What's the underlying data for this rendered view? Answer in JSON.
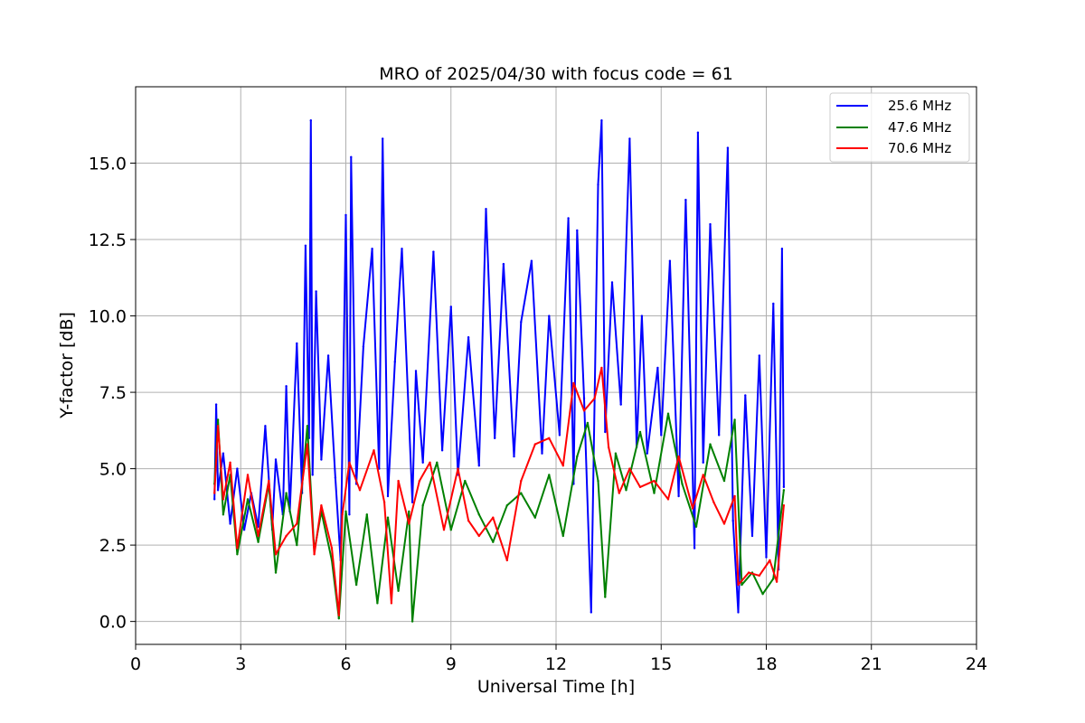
{
  "chart_data": {
    "type": "line",
    "title": "MRO of 2025/04/30 with focus code = 61",
    "xlabel": "Universal Time [h]",
    "ylabel": "Y-factor [dB]",
    "xlim": [
      0,
      24
    ],
    "ylim": [
      -0.75,
      17.5
    ],
    "xticks": [
      0,
      3,
      6,
      9,
      12,
      15,
      18,
      21,
      24
    ],
    "yticks": [
      0.0,
      2.5,
      5.0,
      7.5,
      10.0,
      12.5,
      15.0
    ],
    "ytick_labels": [
      "0.0",
      "2.5",
      "5.0",
      "7.5",
      "10.0",
      "12.5",
      "15.0"
    ],
    "grid": true,
    "legend_position": "top-right",
    "series": [
      {
        "name": "25.6 MHz",
        "color": "#0000ff",
        "x": [
          2.25,
          2.3,
          2.35,
          2.5,
          2.7,
          2.9,
          3.1,
          3.3,
          3.5,
          3.7,
          3.9,
          4.0,
          4.2,
          4.3,
          4.4,
          4.6,
          4.75,
          4.85,
          4.95,
          5.0,
          5.05,
          5.15,
          5.3,
          5.5,
          5.7,
          5.85,
          6.0,
          6.1,
          6.15,
          6.3,
          6.5,
          6.75,
          6.95,
          7.05,
          7.2,
          7.4,
          7.6,
          7.9,
          8.0,
          8.2,
          8.5,
          8.75,
          9.0,
          9.2,
          9.5,
          9.8,
          10.0,
          10.25,
          10.5,
          10.8,
          11.0,
          11.3,
          11.6,
          11.8,
          12.1,
          12.35,
          12.5,
          12.6,
          12.8,
          13.0,
          13.2,
          13.3,
          13.4,
          13.6,
          13.85,
          14.1,
          14.3,
          14.45,
          14.6,
          14.9,
          15.0,
          15.25,
          15.5,
          15.7,
          15.95,
          16.05,
          16.2,
          16.4,
          16.65,
          16.9,
          17.05,
          17.2,
          17.4,
          17.6,
          17.8,
          18.0,
          18.2,
          18.35,
          18.45,
          18.5
        ],
        "values": [
          4.0,
          7.1,
          4.3,
          5.5,
          3.2,
          5.0,
          3.0,
          4.2,
          3.1,
          6.4,
          3.0,
          5.3,
          3.5,
          7.7,
          3.6,
          9.1,
          4.2,
          12.3,
          6.0,
          16.4,
          4.8,
          10.8,
          5.3,
          8.7,
          4.7,
          2.0,
          13.3,
          3.5,
          15.2,
          4.5,
          9.0,
          12.2,
          5.0,
          15.8,
          4.1,
          8.5,
          12.2,
          3.9,
          8.2,
          5.2,
          12.1,
          5.6,
          10.3,
          4.8,
          9.3,
          5.1,
          13.5,
          6.0,
          11.7,
          5.4,
          9.8,
          11.8,
          5.5,
          10.0,
          6.1,
          13.2,
          4.5,
          12.8,
          7.3,
          0.3,
          14.3,
          16.4,
          6.2,
          11.1,
          7.1,
          15.8,
          5.7,
          10.0,
          5.5,
          8.3,
          6.1,
          11.8,
          4.1,
          13.8,
          2.4,
          16.0,
          5.2,
          13.0,
          6.1,
          15.5,
          3.3,
          0.3,
          7.4,
          2.8,
          8.7,
          2.1,
          10.4,
          1.7,
          12.2,
          4.4
        ]
      },
      {
        "name": "47.6 MHz",
        "color": "#008000",
        "x": [
          2.25,
          2.35,
          2.5,
          2.7,
          2.9,
          3.2,
          3.5,
          3.8,
          4.0,
          4.3,
          4.6,
          4.9,
          5.1,
          5.3,
          5.6,
          5.8,
          6.0,
          6.3,
          6.6,
          6.9,
          7.2,
          7.5,
          7.8,
          7.9,
          8.2,
          8.6,
          9.0,
          9.4,
          9.8,
          10.2,
          10.6,
          11.0,
          11.4,
          11.8,
          12.2,
          12.6,
          12.9,
          13.2,
          13.4,
          13.7,
          14.0,
          14.4,
          14.8,
          15.2,
          15.6,
          16.0,
          16.4,
          16.8,
          17.1,
          17.3,
          17.6,
          17.9,
          18.2,
          18.5
        ],
        "values": [
          4.5,
          6.6,
          3.5,
          4.8,
          2.2,
          4.0,
          2.6,
          4.5,
          1.6,
          4.2,
          2.5,
          6.4,
          2.3,
          3.6,
          2.0,
          0.1,
          3.6,
          1.2,
          3.5,
          0.6,
          3.4,
          1.0,
          3.6,
          0.0,
          3.8,
          5.2,
          3.0,
          4.6,
          3.5,
          2.6,
          3.8,
          4.2,
          3.4,
          4.8,
          2.8,
          5.4,
          6.5,
          4.6,
          0.8,
          5.5,
          4.3,
          6.2,
          4.2,
          6.8,
          4.5,
          3.1,
          5.8,
          4.6,
          6.6,
          1.2,
          1.6,
          0.9,
          1.4,
          4.3
        ]
      },
      {
        "name": "70.6 MHz",
        "color": "#ff0000",
        "x": [
          2.25,
          2.35,
          2.5,
          2.7,
          2.9,
          3.2,
          3.5,
          3.8,
          4.0,
          4.3,
          4.6,
          4.9,
          5.1,
          5.3,
          5.6,
          5.8,
          5.9,
          6.1,
          6.4,
          6.8,
          7.1,
          7.3,
          7.5,
          7.8,
          8.1,
          8.4,
          8.8,
          9.2,
          9.5,
          9.8,
          10.2,
          10.6,
          11.0,
          11.4,
          11.8,
          12.2,
          12.5,
          12.8,
          13.1,
          13.3,
          13.5,
          13.8,
          14.1,
          14.4,
          14.8,
          15.2,
          15.5,
          15.9,
          16.2,
          16.5,
          16.8,
          17.1,
          17.2,
          17.5,
          17.8,
          18.1,
          18.3,
          18.5
        ],
        "values": [
          4.2,
          6.4,
          4.0,
          5.2,
          2.4,
          4.8,
          2.8,
          4.6,
          2.2,
          2.8,
          3.2,
          5.8,
          2.2,
          3.8,
          2.4,
          0.2,
          3.5,
          5.2,
          4.3,
          5.6,
          3.9,
          0.6,
          4.6,
          3.2,
          4.6,
          5.2,
          3.0,
          5.0,
          3.3,
          2.8,
          3.4,
          2.0,
          4.6,
          5.8,
          6.0,
          5.1,
          7.8,
          6.9,
          7.3,
          8.3,
          5.7,
          4.2,
          5.0,
          4.4,
          4.6,
          4.0,
          5.4,
          3.7,
          4.8,
          3.9,
          3.2,
          4.1,
          1.2,
          1.6,
          1.5,
          2.0,
          1.3,
          3.8
        ]
      }
    ]
  }
}
